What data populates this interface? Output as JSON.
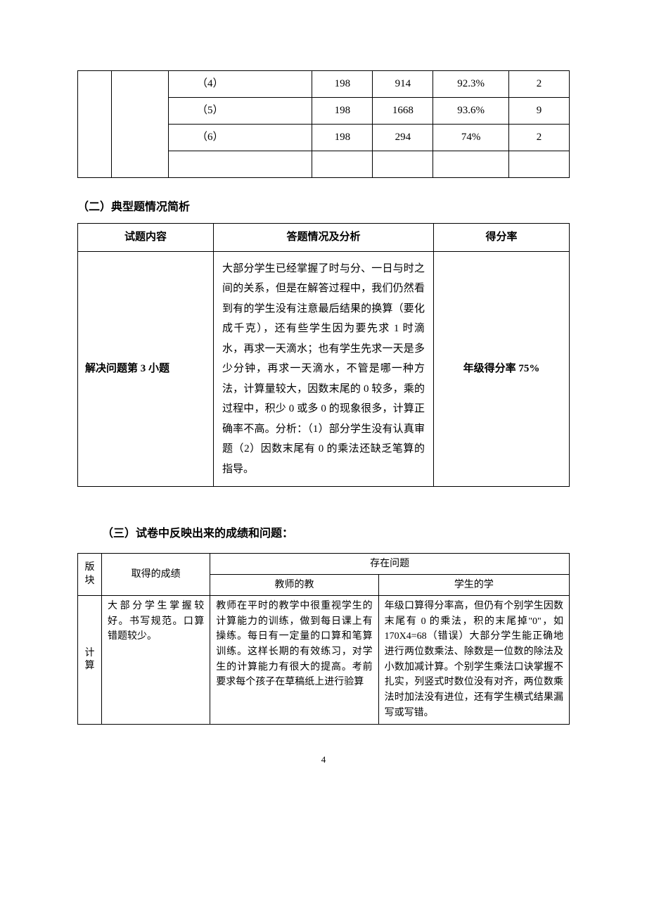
{
  "table1": {
    "rows": [
      {
        "c3": "（4）",
        "c4": "198",
        "c5": "914",
        "c6": "92.3%",
        "c7": "2"
      },
      {
        "c3": "（5）",
        "c4": "198",
        "c5": "1668",
        "c6": "93.6%",
        "c7": "9"
      },
      {
        "c3": "（6）",
        "c4": "198",
        "c5": "294",
        "c6": "74%",
        "c7": "2"
      },
      {
        "c3": "",
        "c4": "",
        "c5": "",
        "c6": "",
        "c7": ""
      }
    ]
  },
  "section2": {
    "heading": "（二）典型题情况简析",
    "headers": {
      "col1": "试题内容",
      "col2": "答题情况及分析",
      "col3": "得分率"
    },
    "row": {
      "question": "解决问题第 3 小题",
      "analysis": "大部分学生已经掌握了时与分、一日与时之间的关系，但是在解答过程中，我们仍然看到有的学生没有注意最后结果的换算（要化成千克），还有些学生因为要先求 1 时滴水，再求一天滴水；也有学生先求一天是多少分钟，再求一天滴水，不管是哪一种方法，计算量较大，因数末尾的 0 较多，乘的过程中，积少 0 或多 0 的现象很多，计算正确率不高。分析：（1）部分学生没有认真审题（2）因数末尾有 0 的乘法还缺乏笔算的指导。",
      "score": "年级得分率 75%"
    }
  },
  "section3": {
    "heading": "（三）试卷中反映出来的成绩和问题：",
    "headers": {
      "block": "版块",
      "achieve": "取得的成绩",
      "problems": "存在问题",
      "teacher": "教师的教",
      "student": "学生的学"
    },
    "row": {
      "block": "计算",
      "achieve": "大部分学生掌握较好。书写规范。口算错题较少。",
      "teacher": "教师在平时的教学中很重视学生的计算能力的训练，做到每日课上有操练。每日有一定量的口算和笔算训练。这样长期的有效练习，对学生的计算能力有很大的提高。考前要求每个孩子在草稿纸上进行验算",
      "student": "年级口算得分率高，但仍有个别学生因数末尾有 0 的乘法，积的末尾掉\"0\"，如 170X4=68（错误）大部分学生能正确地进行两位数乘法、除数是一位数的除法及小数加减计算。个别学生乘法口诀掌握不扎实，列竖式时数位没有对齐，两位数乘法时加法没有进位，还有学生横式结果漏写或写错。"
    }
  },
  "pageNumber": "4",
  "colors": {
    "text": "#000000",
    "background": "#ffffff",
    "border": "#000000"
  }
}
